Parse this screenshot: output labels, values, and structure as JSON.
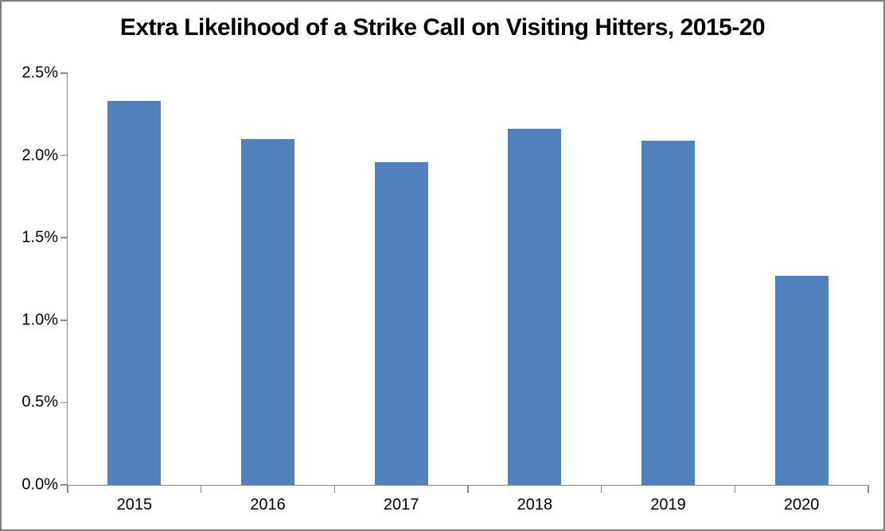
{
  "title": "Extra Likelihood of a Strike Call on Visiting Hitters, 2015-20",
  "chart_data": {
    "type": "bar",
    "title": "Extra Likelihood of a Strike Call on Visiting Hitters, 2015-20",
    "categories": [
      "2015",
      "2016",
      "2017",
      "2018",
      "2019",
      "2020"
    ],
    "values": [
      2.33,
      2.1,
      1.96,
      2.16,
      2.09,
      1.27
    ],
    "unit": "%",
    "xlabel": "",
    "ylabel": "",
    "ylim": [
      0,
      2.5
    ],
    "ytick_step": 0.5,
    "ytick_labels": [
      "0.0%",
      "0.5%",
      "1.0%",
      "1.5%",
      "2.0%",
      "2.5%"
    ],
    "grid": false,
    "legend_position": "none",
    "bar_color": "#4F81BD",
    "axis_color": "#8a8a8a",
    "frame_color": "#7f7f7f"
  }
}
